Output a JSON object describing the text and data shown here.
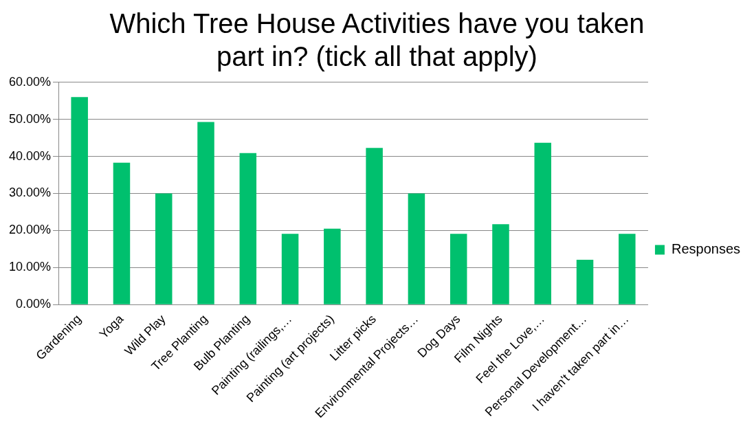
{
  "chart_data": {
    "type": "bar",
    "title": "Which Tree House Activities have you taken part in?  (tick all that apply)",
    "categories": [
      "Gardening",
      "Yoga",
      "Wild Play",
      "Tree Planting",
      "Bulb Planting",
      "Painting (railings,…",
      "Painting (art projects)",
      "Litter picks",
      "Environmental Projects…",
      "Dog Days",
      "Film Nights",
      "Feel the Love,…",
      "Personal Development…",
      "I haven't taken part in…"
    ],
    "series": [
      {
        "name": "Responses",
        "color": "#00c06e",
        "values": [
          56.0,
          38.3,
          30.0,
          49.3,
          40.9,
          19.1,
          20.5,
          42.3,
          30.0,
          19.1,
          21.7,
          43.7,
          12.1,
          19.1
        ]
      }
    ],
    "ylim": [
      0,
      60
    ],
    "yticks": [
      {
        "value": 0,
        "label": "0.00%"
      },
      {
        "value": 10,
        "label": "10.00%"
      },
      {
        "value": 20,
        "label": "20.00%"
      },
      {
        "value": 30,
        "label": "30.00%"
      },
      {
        "value": 40,
        "label": "40.00%"
      },
      {
        "value": 50,
        "label": "50.00%"
      },
      {
        "value": 60,
        "label": "60.00%"
      }
    ],
    "grid": "y",
    "legend": "right"
  }
}
